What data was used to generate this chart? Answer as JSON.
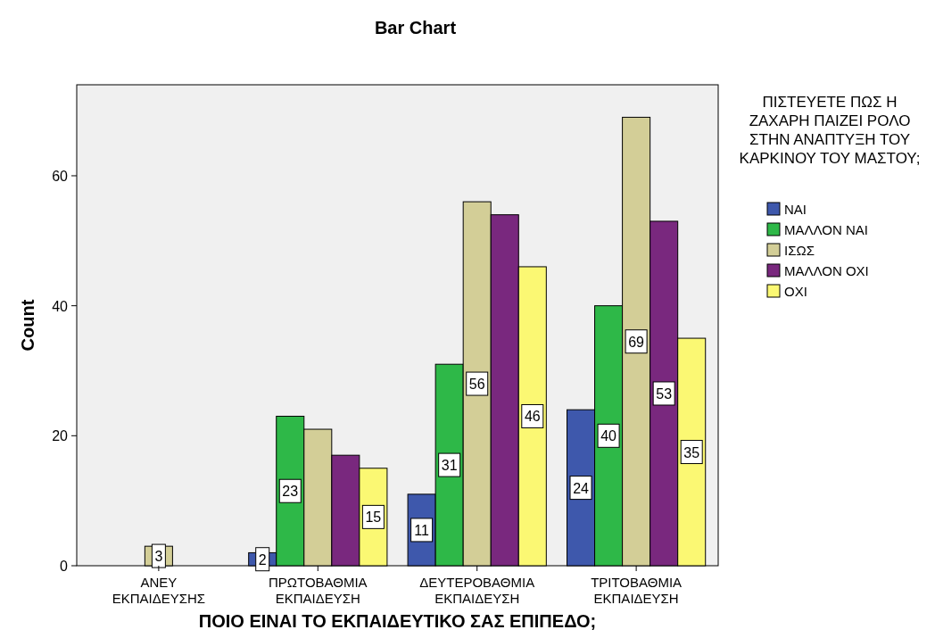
{
  "chart_data": {
    "type": "bar",
    "title": "Bar Chart",
    "xlabel": "ΠΟΙΟ ΕΙΝΑΙ ΤΟ ΕΚΠΑΙΔΕΥΤΙΚΟ ΣΑΣ ΕΠΙΠΕΔΟ;",
    "ylabel": "Count",
    "legend_title": "ΠΙΣΤΕΥΕΤΕ ΠΩΣ Η ΖΑΧΑΡΗ ΠΑΙΖΕΙ ΡΟΛΟ ΣΤΗΝ ΑΝΑΠΤΥΞΗ ΤΟΥ ΚΑΡΚΙΝΟΥ ΤΟΥ ΜΑΣΤΟΥ;",
    "legend": "right",
    "grid": false,
    "categories": [
      "ΑΝΕΥ ΕΚΠΑΙΔΕΥΣΗΣ",
      "ΠΡΩΤΟΒΑΘΜΙΑ ΕΚΠΑΙΔΕΥΣΗ",
      "ΔΕΥΤΕΡΟΒΑΘΜΙΑ ΕΚΠΑΙΔΕΥΣΗ",
      "ΤΡΙΤΟΒΑΘΜΙΑ ΕΚΠΑΙΔΕΥΣΗ"
    ],
    "ylim": [
      0,
      74
    ],
    "yticks": [
      0,
      20,
      40,
      60
    ],
    "series": [
      {
        "name": "ΝΑΙ",
        "color": "#3e58ac",
        "values": [
          null,
          2,
          11,
          24
        ],
        "value_labels": [
          null,
          "2",
          "11",
          "24"
        ]
      },
      {
        "name": "ΜΑΛΛΟΝ ΝΑΙ",
        "color": "#2eb848",
        "values": [
          null,
          23,
          31,
          40
        ],
        "value_labels": [
          null,
          "23",
          "31",
          "40"
        ]
      },
      {
        "name": "ΙΣΩΣ",
        "color": "#d3ce97",
        "values": [
          3,
          21,
          56,
          69
        ],
        "value_labels": [
          "3",
          null,
          "56",
          "69"
        ]
      },
      {
        "name": "ΜΑΛΛΟΝ ΟΧΙ",
        "color": "#79287e",
        "values": [
          null,
          17,
          54,
          53
        ],
        "value_labels": [
          null,
          null,
          null,
          "53"
        ]
      },
      {
        "name": "ΟΧΙ",
        "color": "#fbf873",
        "values": [
          null,
          15,
          46,
          35
        ],
        "value_labels": [
          null,
          "15",
          "46",
          "35"
        ]
      }
    ]
  }
}
